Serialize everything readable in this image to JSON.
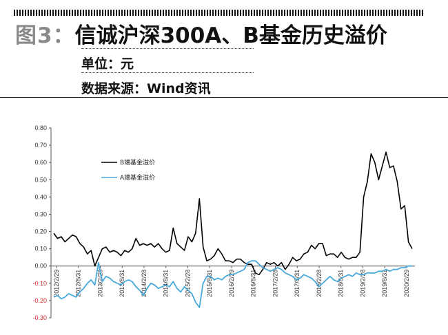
{
  "header": {
    "figure_label": "图3：",
    "title": "信诚沪深300A、B基金历史溢价",
    "unit": "单位：元",
    "source": "数据来源：Wind资讯"
  },
  "colors": {
    "b_line": "#000000",
    "a_line": "#4aa9dc",
    "axis": "#555555",
    "negative_label": "#cc2a2a"
  },
  "chart_data": {
    "type": "line",
    "title": "",
    "xlabel": "",
    "ylabel": "",
    "ylim": [
      -0.3,
      0.8
    ],
    "yticks": [
      0.8,
      0.7,
      0.6,
      0.5,
      0.4,
      0.3,
      0.2,
      0.1,
      0.0,
      -0.1,
      -0.2,
      -0.3
    ],
    "ytick_labels": [
      "0.80",
      "0.70",
      "0.60",
      "0.50",
      "0.40",
      "0.30",
      "0.20",
      "0.10",
      "0.00",
      "-0.10",
      "-0.20",
      "-0.30"
    ],
    "xtick_labels": [
      "2012/2/29",
      "2012/8/31",
      "2013/2/28",
      "2013/8/31",
      "2014/2/28",
      "2014/8/31",
      "2015/2/28",
      "2015/8/31",
      "2016/2/29",
      "2016/8/31",
      "2017/2/28",
      "2017/8/31",
      "2018/2/28",
      "2018/8/31",
      "2019/2/28",
      "2019/8/31",
      "2020/2/29"
    ],
    "legend_position": "upper-left",
    "grid": false,
    "series": [
      {
        "name": "B端基金溢价",
        "color": "#000000",
        "values": [
          0.19,
          0.16,
          0.17,
          0.14,
          0.16,
          0.18,
          0.17,
          0.13,
          0.11,
          0.07,
          0.09,
          0.0,
          0.05,
          0.1,
          0.11,
          0.08,
          0.09,
          0.08,
          0.06,
          0.09,
          0.08,
          0.1,
          0.16,
          0.12,
          0.13,
          0.12,
          0.13,
          0.11,
          0.13,
          0.1,
          0.08,
          0.09,
          0.22,
          0.13,
          0.11,
          0.09,
          0.17,
          0.14,
          0.19,
          0.39,
          0.11,
          0.03,
          0.04,
          0.06,
          0.1,
          0.07,
          0.03,
          0.03,
          0.02,
          0.04,
          0.04,
          0.02,
          0.01,
          0.01,
          -0.04,
          -0.05,
          -0.02,
          0.02,
          0.01,
          0.02,
          0.0,
          0.02,
          -0.02,
          0.01,
          0.05,
          0.03,
          0.04,
          0.07,
          0.08,
          0.12,
          0.1,
          0.13,
          0.13,
          0.06,
          0.07,
          0.07,
          0.05,
          0.08,
          0.05,
          0.04,
          0.05,
          0.05,
          0.08,
          0.4,
          0.49,
          0.65,
          0.6,
          0.5,
          0.58,
          0.66,
          0.57,
          0.58,
          0.49,
          0.33,
          0.35,
          0.14,
          0.1
        ]
      },
      {
        "name": "A端基金溢价",
        "color": "#4aa9dc",
        "values": [
          -0.18,
          -0.17,
          -0.19,
          -0.18,
          -0.16,
          -0.17,
          -0.18,
          -0.15,
          -0.13,
          -0.1,
          -0.08,
          -0.11,
          0.02,
          -0.09,
          -0.06,
          -0.07,
          -0.09,
          -0.1,
          -0.11,
          -0.09,
          -0.08,
          -0.09,
          -0.12,
          -0.14,
          -0.17,
          -0.13,
          -0.1,
          -0.11,
          -0.13,
          -0.12,
          -0.11,
          -0.12,
          -0.09,
          -0.13,
          -0.15,
          -0.12,
          -0.14,
          -0.16,
          -0.21,
          -0.24,
          -0.1,
          -0.06,
          -0.06,
          -0.08,
          -0.07,
          -0.08,
          -0.06,
          -0.05,
          -0.05,
          -0.04,
          -0.03,
          -0.02,
          0.02,
          0.03,
          0.03,
          0.01,
          -0.01,
          -0.02,
          -0.03,
          -0.02,
          -0.01,
          -0.02,
          -0.04,
          -0.05,
          -0.06,
          -0.08,
          -0.07,
          -0.05,
          -0.06,
          -0.07,
          -0.09,
          -0.12,
          -0.1,
          -0.08,
          -0.06,
          -0.08,
          -0.09,
          -0.07,
          -0.06,
          -0.05,
          -0.06,
          -0.04,
          -0.05,
          -0.05,
          -0.04,
          -0.04,
          -0.04,
          -0.03,
          -0.03,
          -0.02,
          -0.03,
          -0.02,
          -0.02,
          -0.01,
          -0.01,
          0.0,
          0.0
        ]
      }
    ]
  }
}
